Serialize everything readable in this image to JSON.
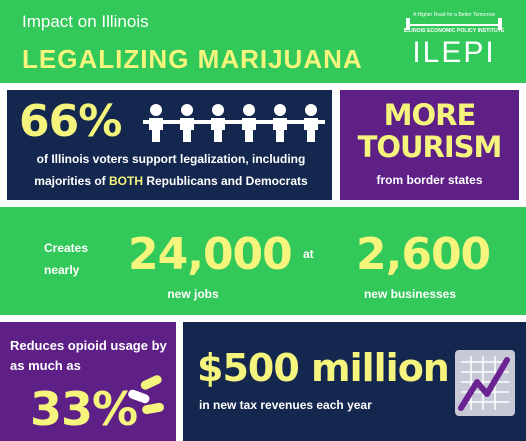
{
  "header": {
    "title_line1": "Impact on Illinois",
    "title_line2": "LEGALIZING MARIJUANA",
    "logo": {
      "tagline": "A Higher Road for a Better Tomorrow",
      "organization": "ILLINOIS ECONOMIC POLICY INSTITUTE",
      "acronym": "ILEPI"
    }
  },
  "voters": {
    "percent": "66%",
    "desc_part1": "of Illinois voters support legalization, including majorities of ",
    "desc_highlight": "BOTH",
    "desc_part2": " Republicans and Democrats",
    "icon": "people-holding-hands-icon"
  },
  "tourism": {
    "headline": "MORE TOURISM",
    "sub": "from border states"
  },
  "jobs": {
    "creates_label": "Creates nearly",
    "jobs_number": "24,000",
    "jobs_label": "new jobs",
    "at_label": "at",
    "businesses_number": "2,600",
    "businesses_label": "new businesses"
  },
  "opioid": {
    "desc": "Reduces opioid usage by as much as",
    "percent": "33%",
    "icon": "pills-icon"
  },
  "tax": {
    "amount": "$500 million",
    "desc": "in new tax revenues each year",
    "icon": "rising-chart-icon"
  },
  "colors": {
    "green": "#33c85a",
    "navy": "#14274e",
    "purple": "#5e1f86",
    "highlight_yellow": "#f5f57e"
  }
}
